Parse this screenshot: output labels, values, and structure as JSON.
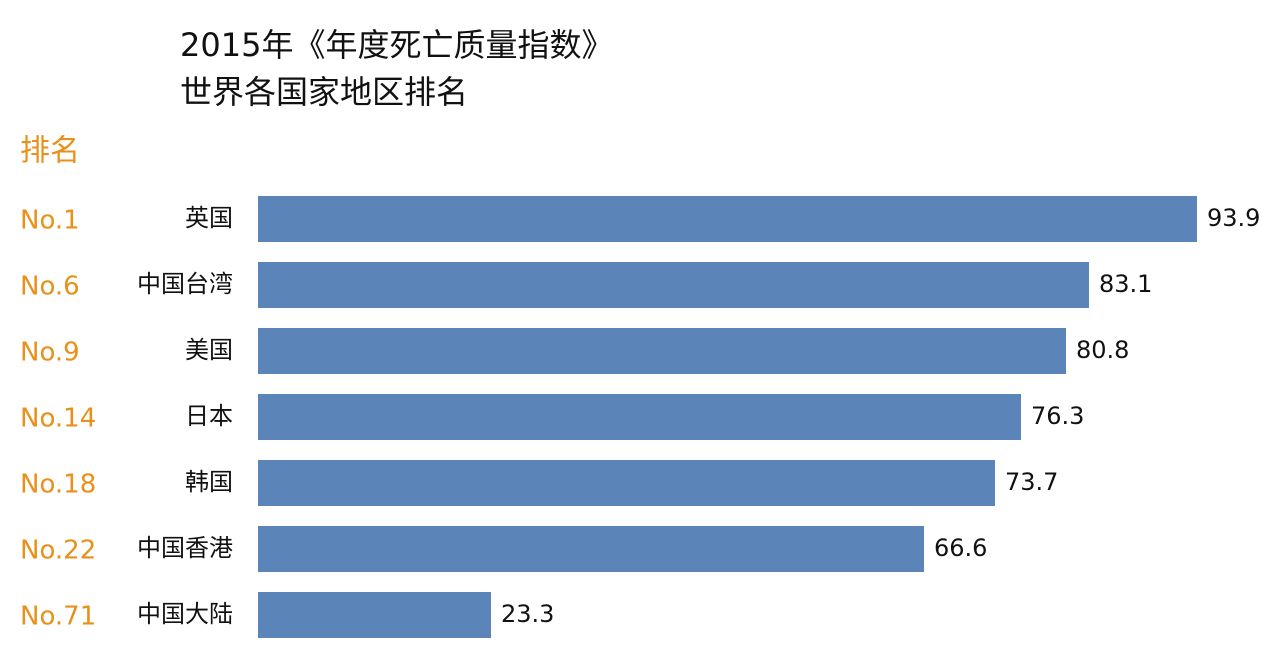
{
  "chart_data": {
    "type": "bar",
    "orientation": "horizontal",
    "title": "2015年《年度死亡质量指数》",
    "subtitle": "世界各国家地区排名",
    "rank_header": "排名",
    "ranks": [
      "No.1",
      "No.6",
      "No.9",
      "No.14",
      "No.18",
      "No.22",
      "No.71"
    ],
    "categories": [
      "英国",
      "中国台湾",
      "美国",
      "日本",
      "韩国",
      "中国香港",
      "中国大陆"
    ],
    "values": [
      93.9,
      83.1,
      80.8,
      76.3,
      73.7,
      66.6,
      23.3
    ],
    "color": "#5b85b8",
    "rank_color": "#e8901a"
  }
}
